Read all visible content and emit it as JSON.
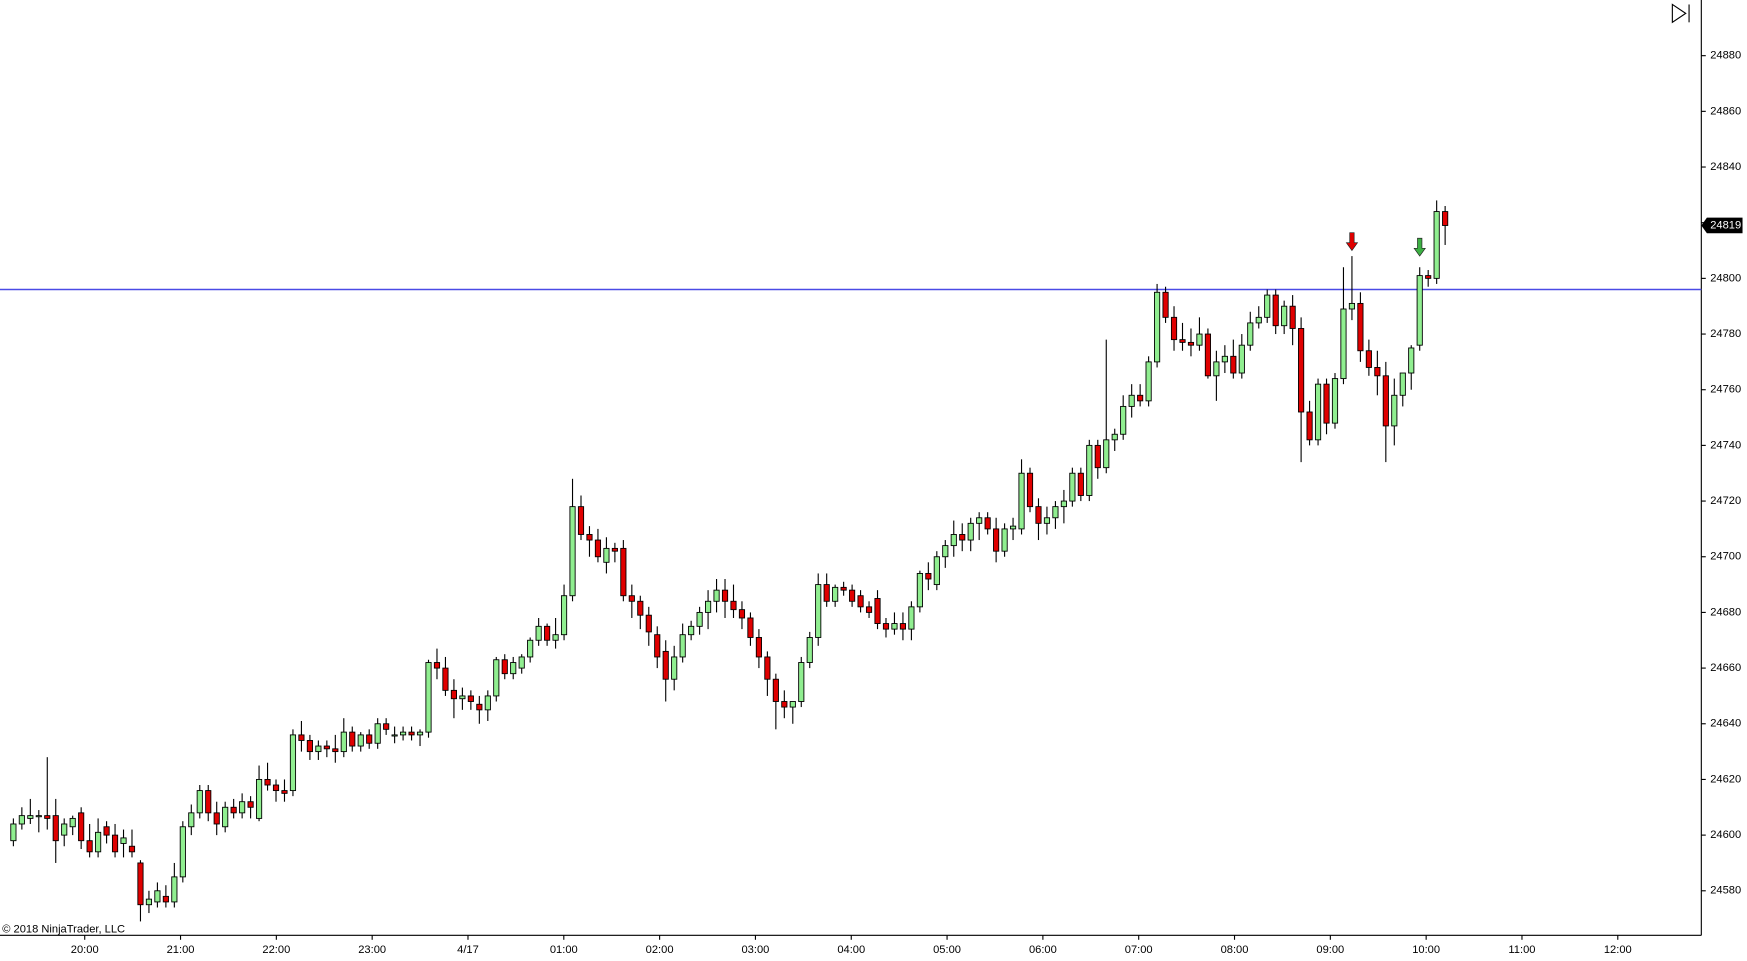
{
  "chart_data": {
    "type": "candlestick",
    "copyright": "© 2018 NinjaTrader, LLC",
    "up_color": "#90ee90",
    "down_color": "#e00000",
    "ylim": [
      24564,
      24900
    ],
    "yticks": [
      24580,
      24600,
      24620,
      24640,
      24660,
      24680,
      24700,
      24720,
      24740,
      24760,
      24780,
      24800,
      24820,
      24840,
      24860,
      24880
    ],
    "xlim": [
      -1.58,
      199.24
    ],
    "xticks": [
      {
        "value": 8.42,
        "label": "20:00"
      },
      {
        "value": 19.73,
        "label": "21:00"
      },
      {
        "value": 31.04,
        "label": "22:00"
      },
      {
        "value": 42.35,
        "label": "23:00"
      },
      {
        "value": 53.66,
        "label": "4/17"
      },
      {
        "value": 64.97,
        "label": "01:00"
      },
      {
        "value": 76.28,
        "label": "02:00"
      },
      {
        "value": 87.59,
        "label": "03:00"
      },
      {
        "value": 98.9,
        "label": "04:00"
      },
      {
        "value": 110.21,
        "label": "05:00"
      },
      {
        "value": 121.52,
        "label": "06:00"
      },
      {
        "value": 132.83,
        "label": "07:00"
      },
      {
        "value": 144.14,
        "label": "08:00"
      },
      {
        "value": 155.45,
        "label": "09:00"
      },
      {
        "value": 166.76,
        "label": "10:00"
      },
      {
        "value": 178.07,
        "label": "11:00"
      },
      {
        "value": 189.38,
        "label": "12:00"
      }
    ],
    "hline": {
      "value": 24796,
      "color": "#4a4ae6"
    },
    "markers": [
      {
        "x": 158,
        "y": 24810,
        "color": "#e00000"
      },
      {
        "x": 166,
        "y": 24808,
        "color": "#3cb043"
      }
    ],
    "candles": [
      [
        24598,
        24606,
        24596,
        24604
      ],
      [
        24604,
        24610,
        24602,
        24607
      ],
      [
        24606,
        24613,
        24604,
        24607
      ],
      [
        24607,
        24609,
        24601,
        24607
      ],
      [
        24607,
        24628,
        24602,
        24606
      ],
      [
        24607,
        24613,
        24590,
        24598
      ],
      [
        24600,
        24606,
        24596,
        24604
      ],
      [
        24603,
        24607,
        24600,
        24606
      ],
      [
        24608,
        24610,
        24595,
        24598
      ],
      [
        24598,
        24604,
        24592,
        24594
      ],
      [
        24594,
        24606,
        24592,
        24601
      ],
      [
        24603,
        24605,
        24597,
        24600
      ],
      [
        24600,
        24604,
        24592,
        24594
      ],
      [
        24597,
        24602,
        24592,
        24599
      ],
      [
        24596,
        24602,
        24592,
        24594
      ],
      [
        24590,
        24591,
        24569,
        24575
      ],
      [
        24575,
        24580,
        24572,
        24577
      ],
      [
        24576,
        24583,
        24574,
        24580
      ],
      [
        24578,
        24582,
        24574,
        24576
      ],
      [
        24576,
        24590,
        24574,
        24585
      ],
      [
        24585,
        24605,
        24583,
        24603
      ],
      [
        24603,
        24611,
        24600,
        24608
      ],
      [
        24608,
        24618,
        24606,
        24616
      ],
      [
        24616,
        24618,
        24605,
        24608
      ],
      [
        24608,
        24612,
        24600,
        24604
      ],
      [
        24603,
        24612,
        24601,
        24610
      ],
      [
        24610,
        24613,
        24606,
        24608
      ],
      [
        24608,
        24615,
        24606,
        24612
      ],
      [
        24612,
        24614,
        24606,
        24610
      ],
      [
        24606,
        24625,
        24605,
        24620
      ],
      [
        24620,
        24626,
        24616,
        24618
      ],
      [
        24618,
        24620,
        24612,
        24616
      ],
      [
        24616,
        24620,
        24612,
        24615
      ],
      [
        24616,
        24638,
        24614,
        24636
      ],
      [
        24636,
        24641,
        24630,
        24634
      ],
      [
        24634,
        24636,
        24627,
        24630
      ],
      [
        24630,
        24634,
        24627,
        24632
      ],
      [
        24632,
        24634,
        24628,
        24631
      ],
      [
        24631,
        24636,
        24626,
        24630
      ],
      [
        24630,
        24642,
        24628,
        24637
      ],
      [
        24637,
        24639,
        24630,
        24632
      ],
      [
        24632,
        24637,
        24630,
        24636
      ],
      [
        24636,
        24638,
        24631,
        24633
      ],
      [
        24633,
        24642,
        24631,
        24640
      ],
      [
        24640,
        24642,
        24636,
        24638
      ],
      [
        24636,
        24639,
        24633,
        24636
      ],
      [
        24636,
        24639,
        24634,
        24637
      ],
      [
        24637,
        24639,
        24634,
        24636
      ],
      [
        24636,
        24638,
        24632,
        24637
      ],
      [
        24637,
        24663,
        24635,
        24662
      ],
      [
        24662,
        24667,
        24656,
        24660
      ],
      [
        24660,
        24664,
        24650,
        24652
      ],
      [
        24652,
        24656,
        24642,
        24649
      ],
      [
        24649,
        24653,
        24645,
        24650
      ],
      [
        24650,
        24652,
        24645,
        24648
      ],
      [
        24647,
        24650,
        24640,
        24645
      ],
      [
        24645,
        24652,
        24641,
        24650
      ],
      [
        24650,
        24664,
        24648,
        24663
      ],
      [
        24663,
        24665,
        24656,
        24658
      ],
      [
        24658,
        24664,
        24656,
        24662
      ],
      [
        24660,
        24665,
        24658,
        24664
      ],
      [
        24664,
        24671,
        24662,
        24670
      ],
      [
        24670,
        24678,
        24668,
        24675
      ],
      [
        24675,
        24676,
        24668,
        24670
      ],
      [
        24670,
        24678,
        24667,
        24672
      ],
      [
        24672,
        24690,
        24670,
        24686
      ],
      [
        24686,
        24728,
        24684,
        24718
      ],
      [
        24718,
        24722,
        24706,
        24708
      ],
      [
        24708,
        24711,
        24700,
        24706
      ],
      [
        24706,
        24710,
        24698,
        24700
      ],
      [
        24698,
        24707,
        24694,
        24703
      ],
      [
        24703,
        24705,
        24698,
        24702
      ],
      [
        24703,
        24706,
        24684,
        24686
      ],
      [
        24686,
        24690,
        24678,
        24684
      ],
      [
        24684,
        24686,
        24674,
        24679
      ],
      [
        24679,
        24682,
        24668,
        24673
      ],
      [
        24672,
        24675,
        24660,
        24664
      ],
      [
        24666,
        24670,
        24648,
        24656
      ],
      [
        24656,
        24668,
        24652,
        24664
      ],
      [
        24664,
        24676,
        24662,
        24672
      ],
      [
        24672,
        24677,
        24670,
        24675
      ],
      [
        24675,
        24682,
        24672,
        24680
      ],
      [
        24680,
        24688,
        24674,
        24684
      ],
      [
        24684,
        24692,
        24680,
        24688
      ],
      [
        24688,
        24692,
        24678,
        24684
      ],
      [
        24684,
        24690,
        24678,
        24681
      ],
      [
        24681,
        24684,
        24674,
        24678
      ],
      [
        24678,
        24680,
        24668,
        24671
      ],
      [
        24671,
        24674,
        24660,
        24664
      ],
      [
        24664,
        24666,
        24650,
        24656
      ],
      [
        24656,
        24658,
        24638,
        24648
      ],
      [
        24648,
        24652,
        24642,
        24646
      ],
      [
        24646,
        24648,
        24640,
        24648
      ],
      [
        24648,
        24664,
        24646,
        24662
      ],
      [
        24662,
        24673,
        24660,
        24671
      ],
      [
        24671,
        24694,
        24668,
        24690
      ],
      [
        24690,
        24694,
        24682,
        24684
      ],
      [
        24684,
        24690,
        24682,
        24689
      ],
      [
        24689,
        24691,
        24686,
        24688
      ],
      [
        24688,
        24690,
        24682,
        24684
      ],
      [
        24686,
        24688,
        24680,
        24682
      ],
      [
        24682,
        24684,
        24678,
        24680
      ],
      [
        24685,
        24688,
        24674,
        24676
      ],
      [
        24676,
        24678,
        24671,
        24674
      ],
      [
        24674,
        24680,
        24672,
        24676
      ],
      [
        24676,
        24680,
        24670,
        24674
      ],
      [
        24674,
        24684,
        24670,
        24682
      ],
      [
        24682,
        24695,
        24680,
        24694
      ],
      [
        24694,
        24698,
        24688,
        24692
      ],
      [
        24690,
        24702,
        24688,
        24700
      ],
      [
        24700,
        24706,
        24696,
        24704
      ],
      [
        24704,
        24713,
        24700,
        24708
      ],
      [
        24708,
        24712,
        24702,
        24706
      ],
      [
        24706,
        24714,
        24702,
        24712
      ],
      [
        24712,
        24716,
        24706,
        24714
      ],
      [
        24714,
        24716,
        24708,
        24710
      ],
      [
        24710,
        24714,
        24698,
        24702
      ],
      [
        24702,
        24712,
        24700,
        24710
      ],
      [
        24710,
        24714,
        24706,
        24711
      ],
      [
        24710,
        24735,
        24708,
        24730
      ],
      [
        24730,
        24732,
        24716,
        24718
      ],
      [
        24718,
        24721,
        24706,
        24712
      ],
      [
        24712,
        24718,
        24708,
        24714
      ],
      [
        24714,
        24720,
        24710,
        24718
      ],
      [
        24718,
        24724,
        24712,
        24720
      ],
      [
        24720,
        24732,
        24718,
        24730
      ],
      [
        24730,
        24732,
        24720,
        24722
      ],
      [
        24722,
        24742,
        24720,
        24740
      ],
      [
        24740,
        24742,
        24728,
        24732
      ],
      [
        24732,
        24778,
        24730,
        24742
      ],
      [
        24742,
        24746,
        24738,
        24744
      ],
      [
        24744,
        24758,
        24742,
        24754
      ],
      [
        24754,
        24762,
        24750,
        24758
      ],
      [
        24758,
        24762,
        24754,
        24756
      ],
      [
        24756,
        24772,
        24754,
        24770
      ],
      [
        24770,
        24798,
        24768,
        24795
      ],
      [
        24795,
        24797,
        24784,
        24786
      ],
      [
        24786,
        24790,
        24774,
        24778
      ],
      [
        24778,
        24784,
        24774,
        24777
      ],
      [
        24777,
        24782,
        24772,
        24776
      ],
      [
        24776,
        24786,
        24774,
        24780
      ],
      [
        24780,
        24782,
        24764,
        24765
      ],
      [
        24765,
        24774,
        24756,
        24770
      ],
      [
        24770,
        24776,
        24766,
        24772
      ],
      [
        24772,
        24778,
        24764,
        24766
      ],
      [
        24766,
        24780,
        24764,
        24776
      ],
      [
        24776,
        24788,
        24774,
        24784
      ],
      [
        24784,
        24790,
        24782,
        24786
      ],
      [
        24786,
        24796,
        24784,
        24794
      ],
      [
        24794,
        24796,
        24780,
        24783
      ],
      [
        24783,
        24792,
        24780,
        24790
      ],
      [
        24790,
        24794,
        24776,
        24782
      ],
      [
        24782,
        24786,
        24734,
        24752
      ],
      [
        24752,
        24756,
        24740,
        24742
      ],
      [
        24742,
        24764,
        24740,
        24762
      ],
      [
        24762,
        24764,
        24744,
        24748
      ],
      [
        24748,
        24766,
        24746,
        24764
      ],
      [
        24764,
        24804,
        24762,
        24789
      ],
      [
        24789,
        24808,
        24785,
        24791
      ],
      [
        24791,
        24795,
        24770,
        24774
      ],
      [
        24774,
        24778,
        24765,
        24768
      ],
      [
        24768,
        24774,
        24758,
        24765
      ],
      [
        24765,
        24770,
        24734,
        24747
      ],
      [
        24747,
        24764,
        24740,
        24758
      ],
      [
        24758,
        24766,
        24754,
        24766
      ],
      [
        24766,
        24776,
        24760,
        24775
      ],
      [
        24776,
        24804,
        24774,
        24801
      ],
      [
        24801,
        24803,
        24797,
        24800
      ],
      [
        24800,
        24828,
        24798,
        24824
      ],
      [
        24824,
        24826,
        24812,
        24819
      ]
    ]
  }
}
